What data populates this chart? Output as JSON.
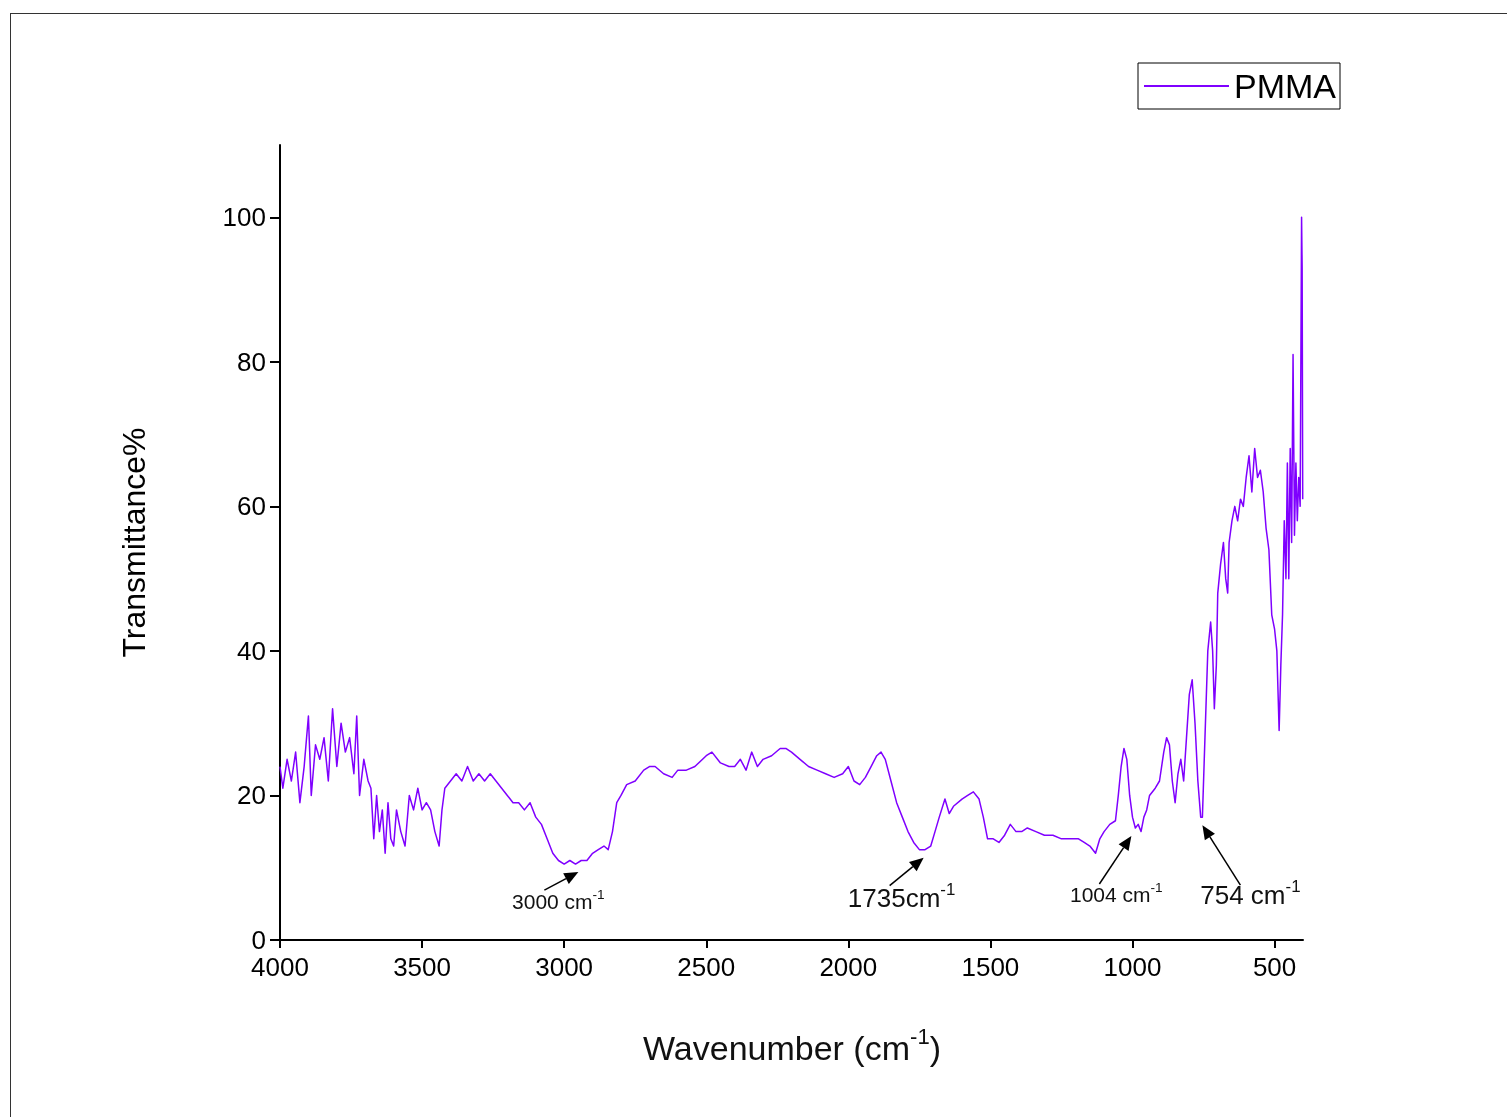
{
  "chart_data": {
    "type": "line",
    "xlabel": "Wavenumber (cm$^{-1}$)",
    "ylabel": "Transmittance%",
    "xlim": [
      4000,
      400
    ],
    "xticks": [
      4000,
      3500,
      3000,
      2500,
      2000,
      1500,
      1000,
      500
    ],
    "ylim": [
      0,
      110
    ],
    "yticks": [
      0,
      20,
      40,
      60,
      80,
      100
    ],
    "grid": false,
    "legend": "top right",
    "marker": "none",
    "line_style": "solid",
    "annotations": [
      {
        "text": "3000 cm$^{-1}$",
        "x": 2950,
        "y": 10.5
      },
      {
        "text": "1735cm$^{-1}$",
        "x": 1735,
        "y": 12.5
      },
      {
        "text": "1004 cm$^{-1}$",
        "x": 1004,
        "y": 15.5
      },
      {
        "text": "754 cm$^{-1}$",
        "x": 754,
        "y": 17
      }
    ],
    "series": [
      {
        "name": "PMMA",
        "color": "#7f00ff",
        "x": [
          4000,
          3990,
          3975,
          3960,
          3945,
          3930,
          3915,
          3900,
          3890,
          3875,
          3860,
          3845,
          3830,
          3815,
          3800,
          3785,
          3770,
          3755,
          3740,
          3730,
          3720,
          3705,
          3690,
          3680,
          3670,
          3660,
          3650,
          3640,
          3630,
          3620,
          3610,
          3600,
          3590,
          3575,
          3560,
          3545,
          3530,
          3515,
          3500,
          3485,
          3470,
          3455,
          3440,
          3430,
          3420,
          3400,
          3380,
          3360,
          3340,
          3320,
          3300,
          3280,
          3260,
          3240,
          3220,
          3200,
          3180,
          3160,
          3140,
          3120,
          3100,
          3080,
          3060,
          3040,
          3020,
          3000,
          2980,
          2960,
          2940,
          2920,
          2900,
          2880,
          2860,
          2845,
          2830,
          2815,
          2800,
          2780,
          2750,
          2720,
          2700,
          2680,
          2650,
          2620,
          2600,
          2570,
          2540,
          2500,
          2480,
          2450,
          2420,
          2400,
          2380,
          2360,
          2340,
          2320,
          2300,
          2270,
          2240,
          2220,
          2200,
          2170,
          2140,
          2110,
          2080,
          2050,
          2020,
          2000,
          1980,
          1960,
          1940,
          1920,
          1900,
          1885,
          1870,
          1850,
          1830,
          1810,
          1790,
          1770,
          1750,
          1730,
          1710,
          1695,
          1680,
          1660,
          1645,
          1630,
          1600,
          1580,
          1560,
          1540,
          1525,
          1510,
          1490,
          1470,
          1450,
          1430,
          1410,
          1390,
          1370,
          1340,
          1310,
          1280,
          1250,
          1220,
          1190,
          1170,
          1150,
          1130,
          1115,
          1100,
          1080,
          1060,
          1050,
          1040,
          1030,
          1020,
          1010,
          1000,
          990,
          980,
          970,
          960,
          950,
          940,
          920,
          905,
          890,
          880,
          870,
          860,
          850,
          840,
          830,
          820,
          810,
          800,
          790,
          780,
          770,
          760,
          754,
          745,
          735,
          725,
          718,
          712,
          705,
          700,
          690,
          680,
          672,
          665,
          660,
          650,
          640,
          630,
          620,
          610,
          600,
          590,
          580,
          570,
          560,
          550,
          540,
          530,
          520,
          510,
          500,
          492,
          484,
          478,
          472,
          466,
          460,
          455,
          450,
          445,
          440,
          435,
          430,
          425,
          420,
          415,
          410,
          405,
          403,
          401
        ],
        "values": [
          24,
          21,
          25,
          22,
          26,
          19,
          24,
          31,
          20,
          27,
          25,
          28,
          22,
          32,
          24,
          30,
          26,
          28,
          23,
          31,
          20,
          25,
          22,
          21,
          14,
          20,
          15,
          18,
          12,
          19,
          14,
          13,
          18,
          15,
          13,
          20,
          18,
          21,
          18,
          19,
          18,
          15,
          13,
          18,
          21,
          22,
          23,
          22,
          24,
          22,
          23,
          22,
          23,
          22,
          21,
          20,
          19,
          19,
          18,
          19,
          17,
          16,
          14,
          12,
          11,
          10.5,
          11,
          10.5,
          11,
          11,
          12,
          12.5,
          13,
          12.5,
          15,
          19,
          20,
          21.5,
          22,
          23.5,
          24,
          24,
          23,
          22.5,
          23.5,
          23.5,
          24,
          25.5,
          26,
          24.5,
          24,
          24,
          25,
          23.5,
          26,
          24,
          25,
          25.5,
          26.5,
          26.5,
          26,
          25,
          24,
          23.5,
          23,
          22.5,
          23,
          24,
          22,
          21.5,
          22.5,
          24,
          25.5,
          26,
          25,
          22,
          19,
          17,
          15,
          13.5,
          12.5,
          12.5,
          13,
          15,
          17,
          19.5,
          17.5,
          18.5,
          19.5,
          20,
          20.5,
          19.5,
          17,
          14,
          14,
          13.5,
          14.5,
          16,
          15,
          15,
          15.5,
          15,
          14.5,
          14.5,
          14,
          14,
          14,
          13.5,
          13,
          12,
          14,
          15,
          16,
          16.5,
          20,
          24,
          26.5,
          25,
          20,
          17,
          15.5,
          16,
          15,
          17,
          18,
          20,
          21,
          22,
          26,
          28,
          27,
          22,
          19,
          23,
          25,
          22,
          28,
          34,
          36,
          30,
          22,
          17,
          17,
          28,
          40,
          44,
          40,
          32,
          38,
          48,
          52,
          55,
          50,
          48,
          55,
          58,
          60,
          58,
          61,
          60,
          64,
          67,
          62,
          68,
          64,
          65,
          62,
          57,
          54,
          45,
          43,
          40,
          29,
          38,
          45,
          58,
          50,
          66,
          50,
          68,
          55,
          81,
          56,
          66,
          58,
          64,
          60,
          100,
          93,
          61
        ]
      }
    ]
  }
}
